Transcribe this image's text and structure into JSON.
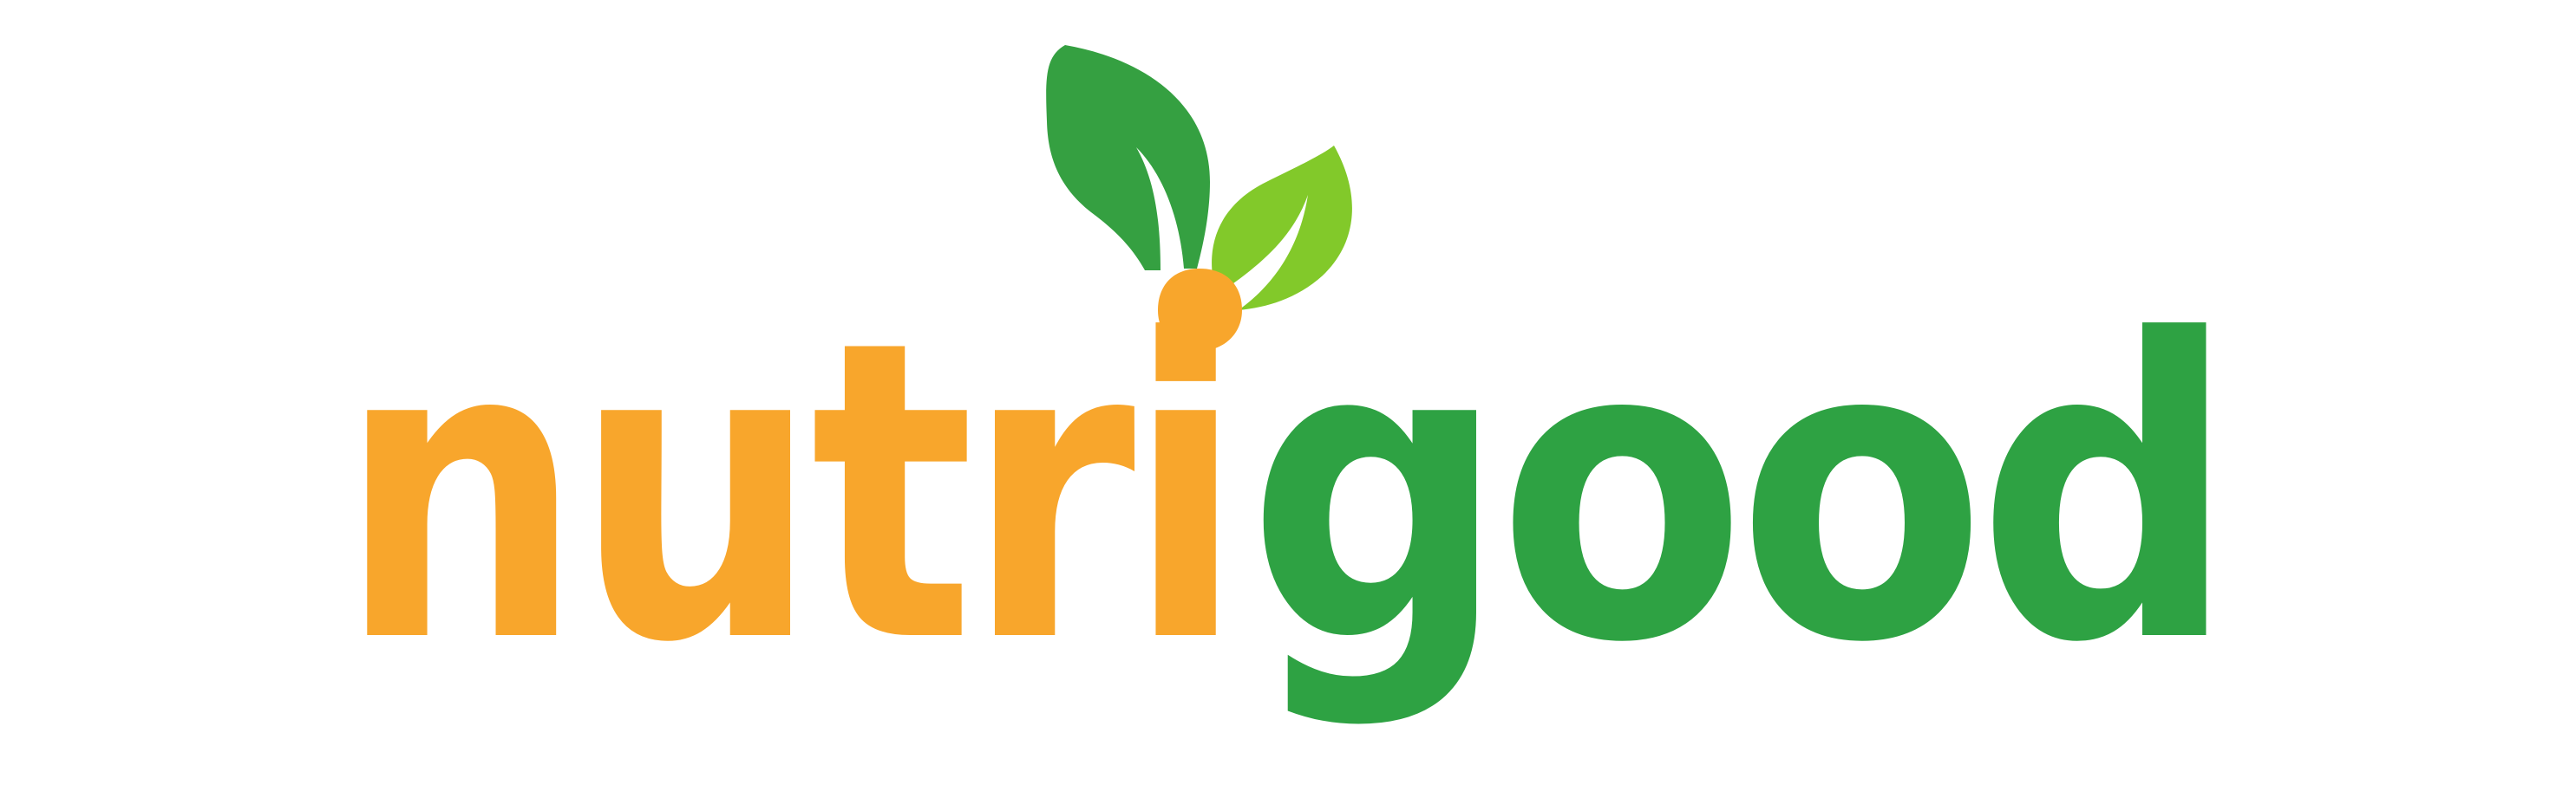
{
  "logo": {
    "text_part1": "nutri",
    "text_part2": "good",
    "colors": {
      "orange": "#F8A62C",
      "green": "#2EA243",
      "dark_leaf": "#35A041",
      "light_leaf": "#82C92A",
      "background": "#FFFFFF"
    },
    "icon": "sprout-leaves-icon"
  }
}
